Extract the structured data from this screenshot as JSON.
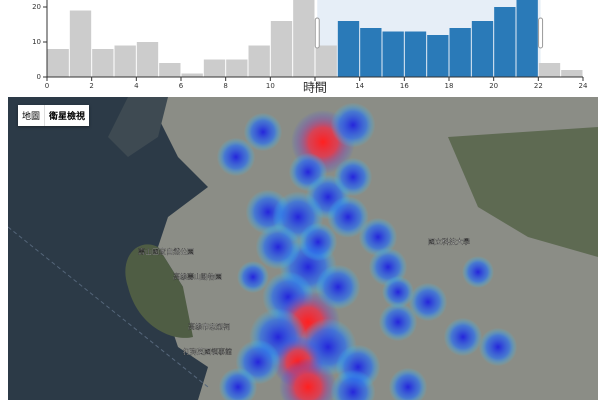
{
  "chart_data": {
    "type": "histogram",
    "x_label": "時間",
    "bins": [
      0,
      1,
      2,
      3,
      4,
      5,
      6,
      7,
      8,
      9,
      10,
      11,
      12,
      13,
      14,
      15,
      16,
      17,
      18,
      19,
      20,
      21,
      22,
      23,
      24
    ],
    "values": [
      8,
      19,
      8,
      9,
      10,
      4,
      1,
      5,
      5,
      9,
      16,
      22,
      9,
      16,
      14,
      13,
      13,
      12,
      14,
      16,
      20,
      22,
      4,
      2
    ],
    "color": "#cccccc",
    "selected_color": "#2a7ab8",
    "brush": [
      12.1,
      22.1
    ],
    "brush_color": "#e6eef7",
    "xlim": [
      0,
      24
    ],
    "xticks": [
      0,
      2,
      4,
      6,
      8,
      10,
      12,
      14,
      16,
      18,
      20,
      22,
      24
    ],
    "ylim": [
      0,
      22
    ],
    "yticks": [
      0,
      10,
      20
    ]
  },
  "map": {
    "buttons": [
      "地圖",
      "衛星檢視"
    ],
    "labels": [
      "高雄市忠烈祠",
      "高雄壽山動物園",
      "壽山國家自然公園",
      "國立科技大學",
      "打狗英國領事館"
    ]
  }
}
